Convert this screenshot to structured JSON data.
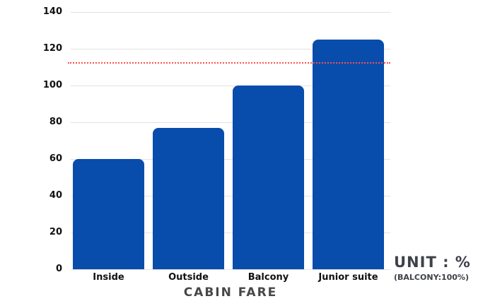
{
  "chart_data": {
    "type": "bar",
    "title": "CABIN FARE",
    "categories": [
      "Inside",
      "Outside",
      "Balcony",
      "Junior suite"
    ],
    "values": [
      60,
      77,
      100,
      125
    ],
    "ylim": [
      0,
      140
    ],
    "yticks": [
      0,
      20,
      40,
      60,
      80,
      100,
      120,
      140
    ],
    "xlabel": "CABIN FARE",
    "ylabel": "",
    "grid": true,
    "legend_position": "none",
    "bar_color": "#084CAC",
    "reference_line": {
      "value": 112.5,
      "color": "#ff5050",
      "style": "dotted"
    }
  },
  "annotations": {
    "unit_label": "UNIT : %",
    "unit_note": "(BALCONY:100%)"
  }
}
